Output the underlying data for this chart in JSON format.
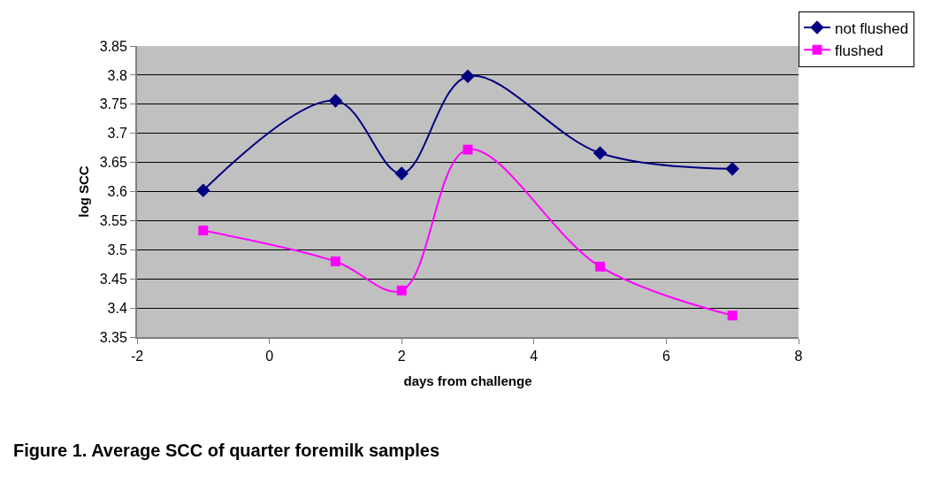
{
  "chart_data": {
    "type": "line",
    "xlabel": "days from challenge",
    "ylabel": "log SCC",
    "x": [
      -1,
      1,
      2,
      3,
      5,
      7
    ],
    "series": [
      {
        "name": "not flushed",
        "color": "#000080",
        "marker": "diamond",
        "values": [
          3.602,
          3.756,
          3.631,
          3.798,
          3.666,
          3.639
        ]
      },
      {
        "name": "flushed",
        "color": "#ff00ff",
        "marker": "square",
        "values": [
          3.533,
          3.48,
          3.43,
          3.672,
          3.471,
          3.387
        ]
      }
    ],
    "xlim": [
      -2,
      8
    ],
    "xticks": [
      -2,
      0,
      2,
      4,
      6,
      8
    ],
    "ylim": [
      3.35,
      3.85
    ],
    "yticks": [
      3.35,
      3.4,
      3.45,
      3.5,
      3.55,
      3.6,
      3.65,
      3.7,
      3.75,
      3.8,
      3.85
    ],
    "grid": "y",
    "legend": "top right",
    "annotations": [
      "Figure 1. Average SCC of quarter foremilk samples"
    ]
  }
}
